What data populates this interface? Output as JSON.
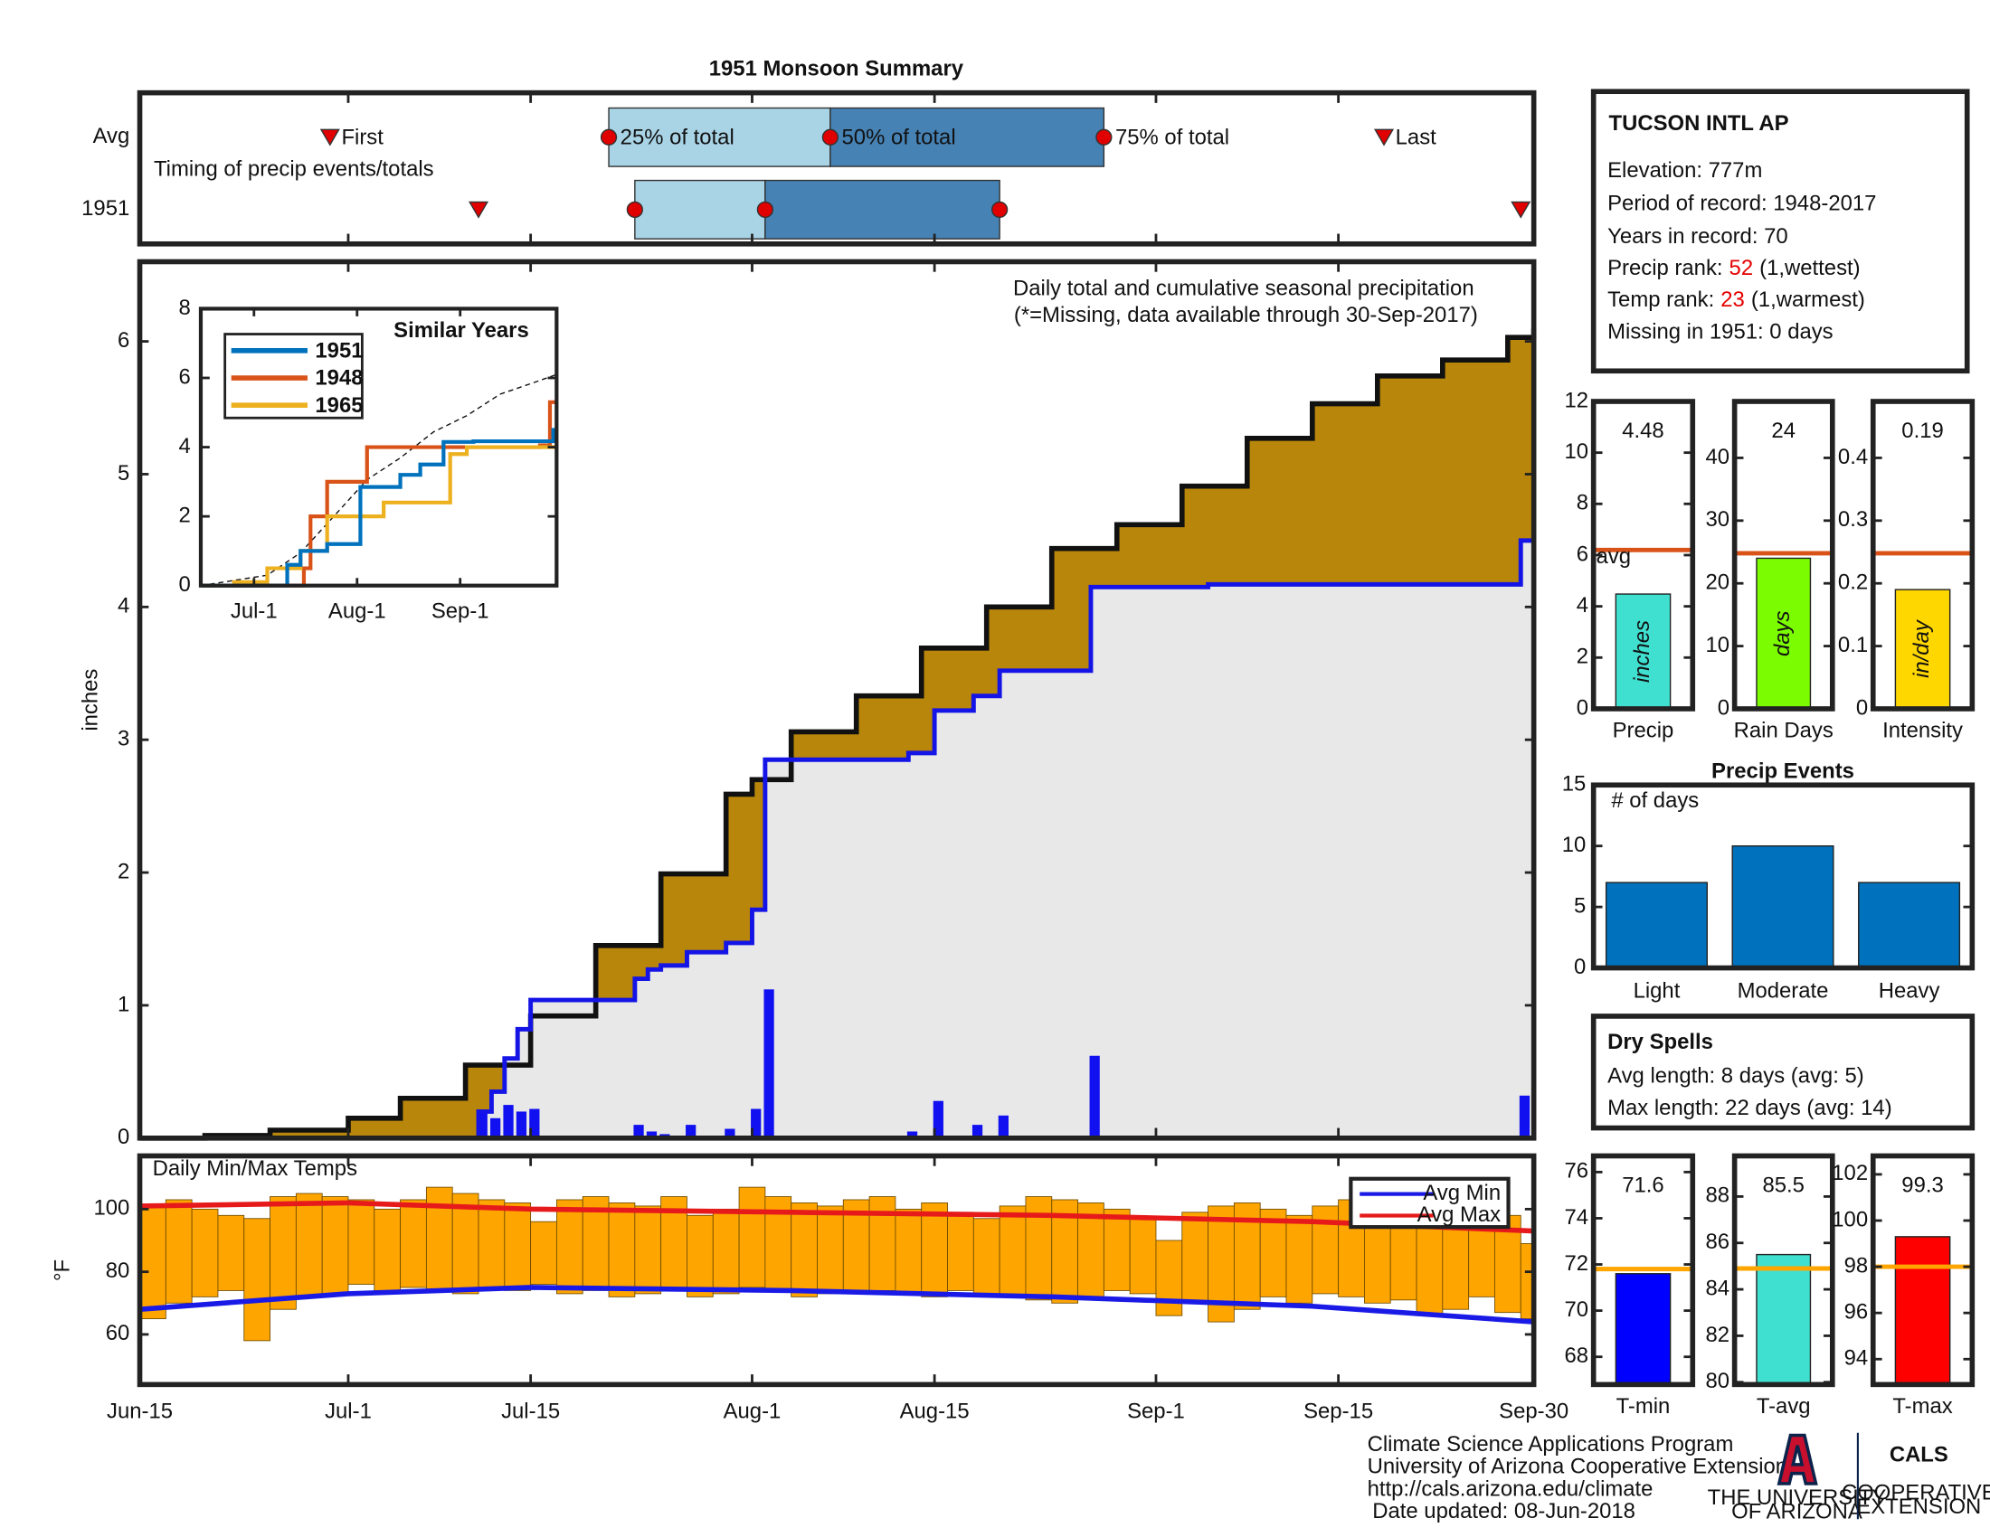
{
  "chart_data": [
    {
      "type": "timing",
      "title": "1951 Monsoon Summary",
      "subtitle": "Timing of precip events/totals",
      "xlim": [
        0,
        107
      ],
      "labels": {
        "first": "First",
        "q25": "25% of total",
        "q50": "50% of total",
        "q75": "75% of total",
        "last": "Last"
      },
      "rows": [
        {
          "label": "Avg",
          "first": 14.6,
          "q25": 36,
          "q50": 53,
          "q75": 74,
          "last": 95.5
        },
        {
          "label": "1951",
          "first": 26,
          "q25": 38,
          "q50": 48,
          "q75": 66,
          "last": 106
        }
      ],
      "colors": {
        "early": "#a9d4e6",
        "late": "#4682b4",
        "marker": "#e00000"
      }
    },
    {
      "type": "step_area",
      "annotation": "Daily total and cumulative seasonal precipitation",
      "note": "(*=Missing, data available through 30-Sep-2017)",
      "ylabel": "inches",
      "xlim": [
        0,
        107
      ],
      "ylim": [
        0,
        6.6
      ],
      "yticks": [
        0,
        1,
        2,
        3,
        4,
        5,
        6
      ],
      "average": {
        "color": "#b8860b",
        "x": [
          0,
          5,
          10,
          16,
          20,
          25,
          30,
          35,
          40,
          45,
          47,
          50,
          55,
          60,
          65,
          70,
          75,
          80,
          85,
          90,
          95,
          100,
          105,
          107
        ],
        "values": [
          0,
          0.02,
          0.06,
          0.15,
          0.3,
          0.55,
          0.92,
          1.45,
          1.99,
          2.59,
          2.7,
          3.06,
          3.33,
          3.69,
          4.0,
          4.44,
          4.62,
          4.91,
          5.27,
          5.53,
          5.74,
          5.86,
          6.03,
          6.1
        ]
      },
      "year": {
        "color": "#1414e6",
        "x": [
          0,
          26,
          27,
          28,
          29,
          30,
          38,
          39,
          40,
          42,
          45,
          47,
          48,
          59,
          61,
          64,
          66,
          73,
          82,
          106,
          107
        ],
        "values": [
          0,
          0.2,
          0.35,
          0.6,
          0.82,
          1.04,
          1.2,
          1.27,
          1.3,
          1.4,
          1.47,
          1.72,
          2.85,
          2.9,
          3.22,
          3.33,
          3.52,
          4.15,
          4.17,
          4.5,
          4.5
        ]
      },
      "daily": {
        "color": "#1010f0",
        "x": [
          26,
          27,
          28,
          29,
          30,
          38,
          39,
          40,
          42,
          45,
          47,
          48,
          59,
          61,
          64,
          66,
          73,
          106
        ],
        "values": [
          0.2,
          0.15,
          0.25,
          0.2,
          0.22,
          0.1,
          0.05,
          0.03,
          0.1,
          0.07,
          0.22,
          1.12,
          0.05,
          0.28,
          0.1,
          0.17,
          0.62,
          0.32
        ]
      }
    },
    {
      "type": "line",
      "title": "Similar Years",
      "xlim": [
        0,
        107
      ],
      "ylim": [
        0,
        8
      ],
      "yticks": [
        0,
        2,
        4,
        6,
        8
      ],
      "xticks": [
        {
          "value": 16,
          "label": "Jul-1"
        },
        {
          "value": 47,
          "label": "Aug-1"
        },
        {
          "value": 78,
          "label": "Sep-1"
        }
      ],
      "series": [
        {
          "name": "1951",
          "color": "#0072bd",
          "x": [
            0,
            26,
            30,
            38,
            48,
            60,
            66,
            73,
            82,
            106,
            107
          ],
          "values": [
            0,
            0.6,
            1.0,
            1.2,
            2.85,
            3.2,
            3.5,
            4.15,
            4.17,
            4.5,
            4.5
          ]
        },
        {
          "name": "1948",
          "color": "#d95319",
          "x": [
            0,
            31,
            33,
            38,
            50,
            102,
            105,
            107
          ],
          "values": [
            0,
            0.5,
            2,
            3,
            4,
            4.05,
            5.3,
            5.3
          ]
        },
        {
          "name": "1965",
          "color": "#edb120",
          "x": [
            0,
            10,
            20,
            30,
            38,
            55,
            75,
            80,
            107
          ],
          "values": [
            0,
            0.1,
            0.5,
            1.0,
            2.0,
            2.4,
            3.8,
            4.0,
            4.1
          ]
        }
      ],
      "reference": {
        "x": [
          0,
          20,
          30,
          40,
          50,
          60,
          70,
          80,
          90,
          100,
          107
        ],
        "values": [
          0,
          0.3,
          0.95,
          2.0,
          3.06,
          3.69,
          4.44,
          4.91,
          5.53,
          5.86,
          6.1
        ]
      }
    },
    {
      "type": "range_bar",
      "title": "Daily Min/Max Temps",
      "ylabel": "°F",
      "xlim": [
        0,
        107
      ],
      "ylim": [
        44,
        117
      ],
      "yticks": [
        60,
        80,
        100
      ],
      "xticks": [
        {
          "value": 0,
          "label": "Jun-15"
        },
        {
          "value": 16,
          "label": "Jul-1"
        },
        {
          "value": 30,
          "label": "Jul-15"
        },
        {
          "value": 47,
          "label": "Aug-1"
        },
        {
          "value": 61,
          "label": "Aug-15"
        },
        {
          "value": 78,
          "label": "Sep-1"
        },
        {
          "value": 92,
          "label": "Sep-15"
        },
        {
          "value": 107,
          "label": "Sep-30"
        }
      ],
      "color": "#ffa500",
      "x": [
        0,
        2,
        4,
        6,
        8,
        10,
        12,
        14,
        16,
        18,
        20,
        22,
        24,
        26,
        28,
        30,
        32,
        34,
        36,
        38,
        40,
        42,
        44,
        46,
        48,
        50,
        52,
        54,
        56,
        58,
        60,
        62,
        64,
        66,
        68,
        70,
        72,
        74,
        76,
        78,
        80,
        82,
        84,
        86,
        88,
        90,
        92,
        94,
        96,
        98,
        100,
        102,
        104,
        106
      ],
      "max": [
        101,
        103,
        100,
        98,
        97,
        104,
        105,
        104,
        103,
        100,
        103,
        107,
        105,
        103,
        102,
        96,
        103,
        104,
        102,
        101,
        104,
        98,
        100,
        107,
        104,
        102,
        101,
        103,
        104,
        100,
        102,
        99,
        97,
        101,
        104,
        103,
        102,
        100,
        97,
        90,
        99,
        101,
        102,
        100,
        98,
        101,
        103,
        102,
        99,
        97,
        100,
        103,
        98,
        89
      ],
      "min": [
        65,
        70,
        72,
        74,
        58,
        68,
        72,
        73,
        76,
        74,
        75,
        74,
        73,
        75,
        74,
        76,
        73,
        74,
        72,
        73,
        74,
        72,
        73,
        75,
        74,
        72,
        73,
        74,
        74,
        73,
        72,
        74,
        73,
        72,
        71,
        70,
        72,
        74,
        73,
        66,
        70,
        64,
        68,
        72,
        70,
        73,
        72,
        70,
        71,
        66,
        68,
        72,
        67,
        65
      ],
      "series": [
        {
          "name": "Avg Min",
          "color": "#1a1ae6",
          "x": [
            0,
            16,
            30,
            50,
            70,
            90,
            107
          ],
          "values": [
            68,
            73,
            75,
            74,
            72,
            69,
            64
          ]
        },
        {
          "name": "Avg Max",
          "color": "#e61a1a",
          "x": [
            0,
            16,
            30,
            50,
            70,
            90,
            107
          ],
          "values": [
            101,
            102,
            100,
            99,
            98,
            96,
            93
          ]
        }
      ]
    },
    {
      "type": "gauge",
      "xlabel": "Precip",
      "unit_label": "inches",
      "value": 4.48,
      "avg": 6.2,
      "avg_label": "avg",
      "ylim": [
        0,
        12
      ],
      "yticks": [
        0,
        2,
        4,
        6,
        8,
        10,
        12
      ],
      "color": "#40e0d0",
      "avg_color": "#d95319"
    },
    {
      "type": "gauge",
      "xlabel": "Rain Days",
      "unit_label": "days",
      "value": 24,
      "avg": 24.8,
      "ylim": [
        0,
        49
      ],
      "yticks": [
        0,
        10,
        20,
        30,
        40
      ],
      "color": "#7cfc00",
      "avg_color": "#d95319"
    },
    {
      "type": "gauge",
      "xlabel": "Intensity",
      "unit_label": "in/day",
      "value": 0.19,
      "avg": 0.248,
      "ylim": [
        0,
        0.49
      ],
      "yticks": [
        0,
        0.1,
        0.2,
        0.3,
        0.4
      ],
      "color": "#ffd700",
      "avg_color": "#d95319"
    },
    {
      "type": "bar",
      "title": "Precip Events",
      "ylabel": "# of days",
      "categories": [
        "Light",
        "Moderate",
        "Heavy"
      ],
      "values": [
        7,
        10,
        7
      ],
      "ylim": [
        0,
        15
      ],
      "yticks": [
        0,
        5,
        10,
        15
      ],
      "color": "#0072bd"
    },
    {
      "type": "gauge",
      "xlabel": "T-min",
      "value": 71.6,
      "avg": 71.8,
      "ylim": [
        66.8,
        76.7
      ],
      "yticks": [
        68,
        70,
        72,
        74,
        76
      ],
      "color": "#0000ff",
      "avg_color": "#ffa500"
    },
    {
      "type": "gauge",
      "xlabel": "T-avg",
      "value": 85.5,
      "avg": 84.9,
      "ylim": [
        79.9,
        89.75
      ],
      "yticks": [
        80,
        82,
        84,
        86,
        88
      ],
      "color": "#40e0d0",
      "avg_color": "#ffa500"
    },
    {
      "type": "gauge",
      "xlabel": "T-max",
      "value": 99.3,
      "avg": 98,
      "ylim": [
        92.9,
        102.8
      ],
      "yticks": [
        94,
        96,
        98,
        100,
        102
      ],
      "color": "#ff0000",
      "avg_color": "#ffa500"
    }
  ],
  "station": {
    "name": "TUCSON INTL AP",
    "elevation": "Elevation: 777m",
    "period": "Period of record: 1948-2017",
    "years": "Years in record: 70",
    "precip_rank": {
      "label": "Precip rank:",
      "value": 52,
      "note": "(1,wettest)"
    },
    "temp_rank": {
      "label": "Temp rank:",
      "value": 23,
      "note": "(1,warmest)"
    },
    "missing": "Missing in 1951: 0 days"
  },
  "dry_spells": {
    "title": "Dry Spells",
    "avg": "Avg length: 8 days (avg: 5)",
    "max": "Max length: 22 days (avg: 14)"
  },
  "footer": {
    "lines": [
      "Climate Science Applications Program",
      "University of Arizona Cooperative Extension",
      "http://cals.arizona.edu/climate",
      "Date updated: 08-Jun-2018"
    ],
    "ua": [
      "THE UNIVERSITY",
      "OF ARIZONA"
    ],
    "cals": "CALS",
    "extension": [
      "COOPERATIVE",
      "EXTENSION"
    ]
  }
}
